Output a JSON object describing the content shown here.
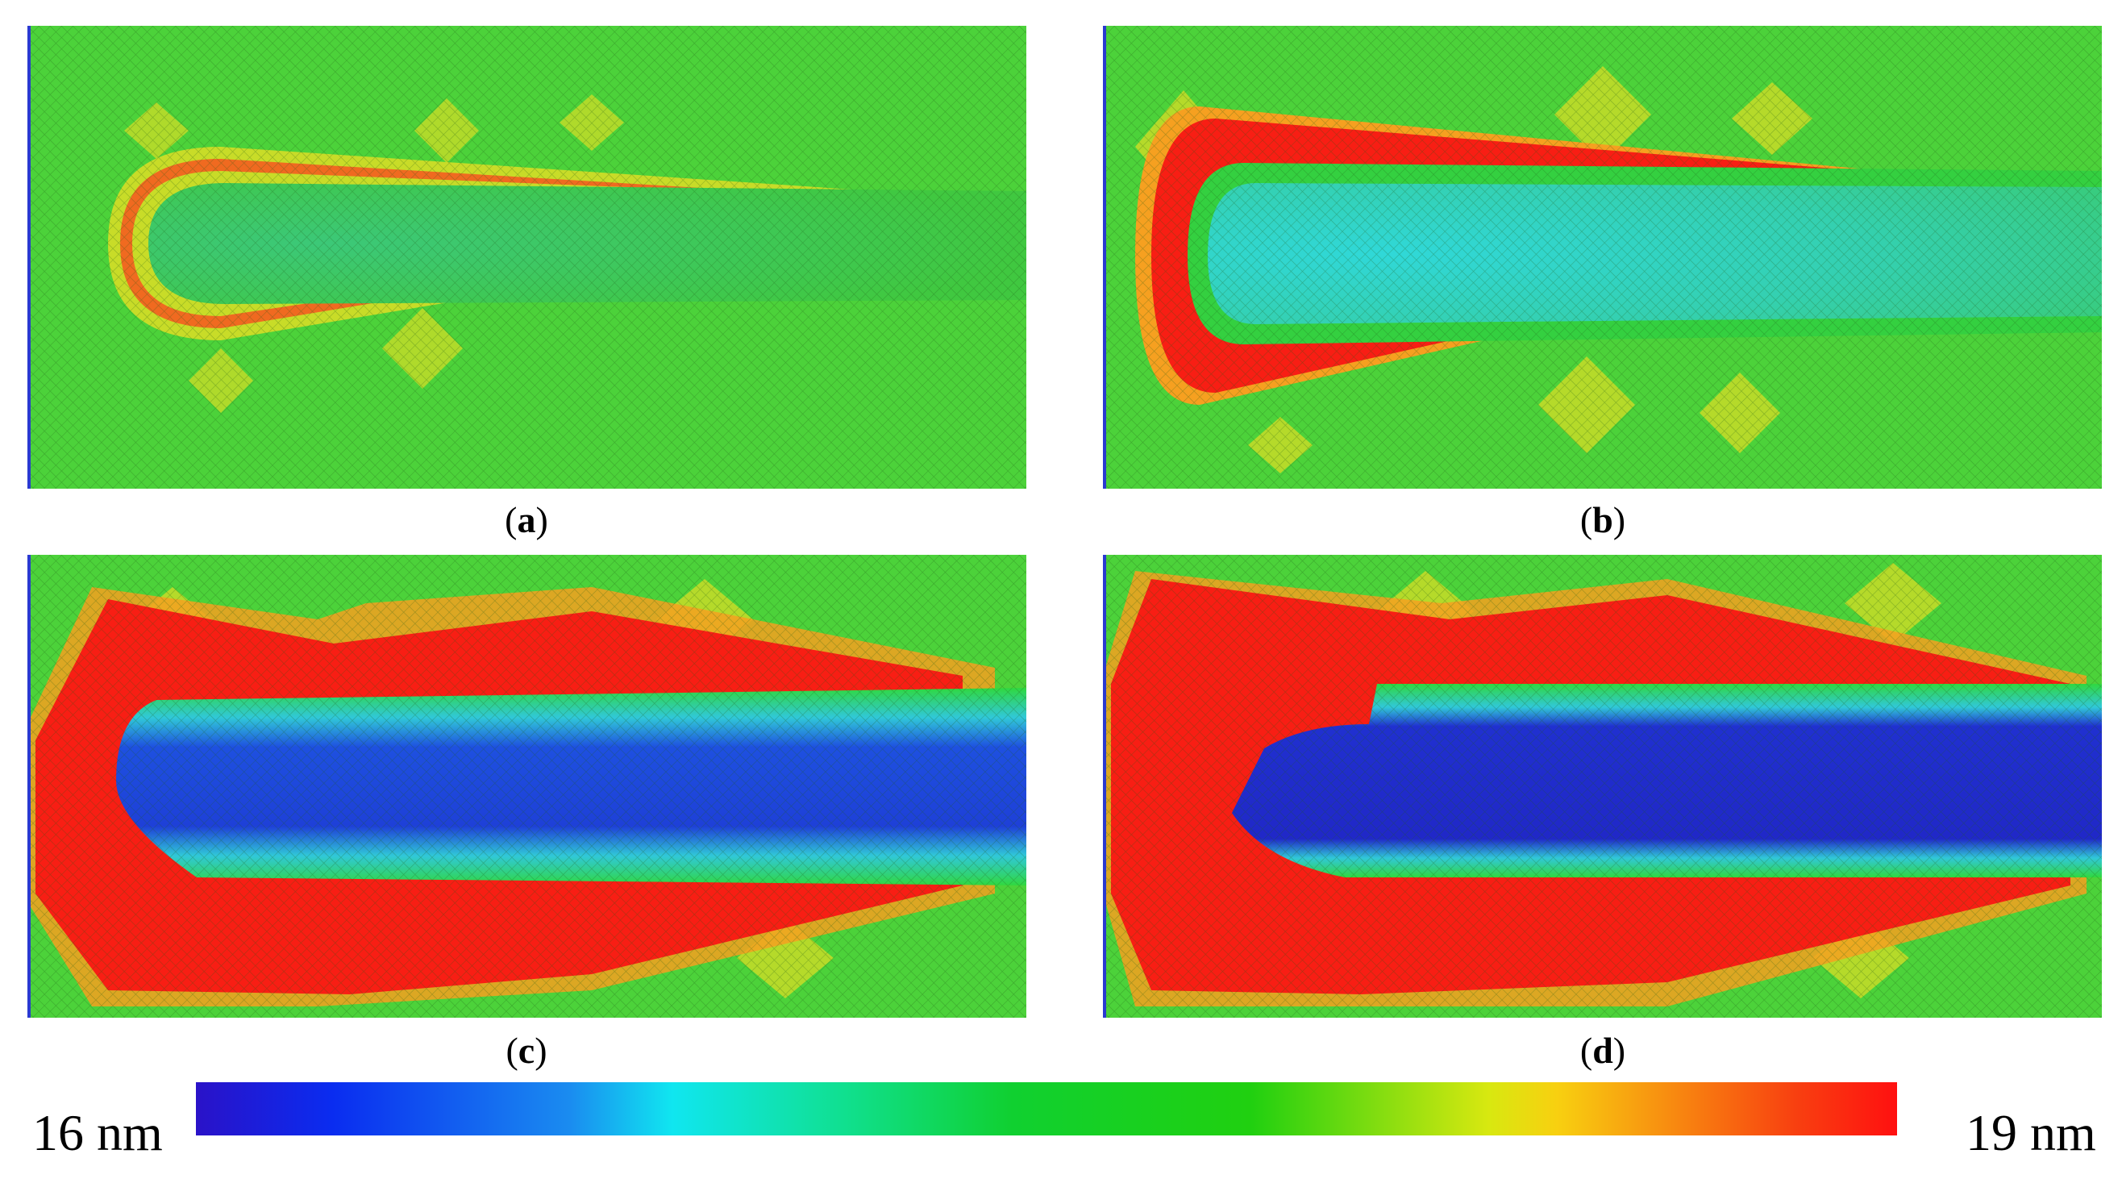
{
  "panels": [
    {
      "id": "a",
      "caption": "a"
    },
    {
      "id": "b",
      "caption": "b"
    },
    {
      "id": "c",
      "caption": "c"
    },
    {
      "id": "d",
      "caption": "d"
    }
  ],
  "colorbar": {
    "min_label": "16 nm",
    "max_label": "19 nm",
    "colors": [
      "#2a12c8",
      "#10e6f0",
      "#10d030",
      "#f8d010",
      "#ff1010"
    ]
  },
  "colors": {
    "background_green": "#4cd23a",
    "rim_yellow": "#c8dc28",
    "red": "#f81e14",
    "cyan": "#30d8c8",
    "blue": "#2020d0"
  }
}
